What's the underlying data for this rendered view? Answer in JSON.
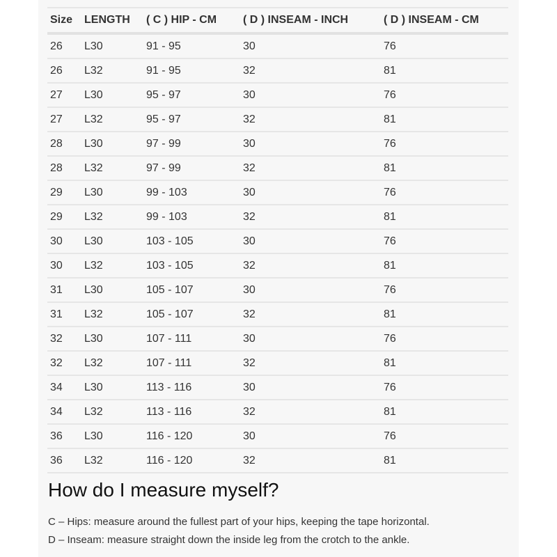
{
  "table": {
    "headers": [
      "Size",
      "LENGTH",
      "( C ) HIP - CM",
      "( D ) INSEAM - INCH",
      "( D ) INSEAM - CM"
    ],
    "rows": [
      [
        "26",
        "L30",
        "91 - 95",
        "30",
        "76"
      ],
      [
        "26",
        "L32",
        "91 - 95",
        "32",
        "81"
      ],
      [
        "27",
        "L30",
        "95 - 97",
        "30",
        "76"
      ],
      [
        "27",
        "L32",
        "95 - 97",
        "32",
        "81"
      ],
      [
        "28",
        "L30",
        "97 - 99",
        "30",
        "76"
      ],
      [
        "28",
        "L32",
        "97 - 99",
        "32",
        "81"
      ],
      [
        "29",
        "L30",
        "99 - 103",
        "30",
        "76"
      ],
      [
        "29",
        "L32",
        "99 - 103",
        "32",
        "81"
      ],
      [
        "30",
        "L30",
        "103 - 105",
        "30",
        "76"
      ],
      [
        "30",
        "L32",
        "103 - 105",
        "32",
        "81"
      ],
      [
        "31",
        "L30",
        "105 - 107",
        "30",
        "76"
      ],
      [
        "31",
        "L32",
        "105 - 107",
        "32",
        "81"
      ],
      [
        "32",
        "L30",
        "107 - 111",
        "30",
        "76"
      ],
      [
        "32",
        "L32",
        "107 - 111",
        "32",
        "81"
      ],
      [
        "34",
        "L30",
        "113 - 116",
        "30",
        "76"
      ],
      [
        "34",
        "L32",
        "113 - 116",
        "32",
        "81"
      ],
      [
        "36",
        "L30",
        "116 - 120",
        "30",
        "76"
      ],
      [
        "36",
        "L32",
        "116 - 120",
        "32",
        "81"
      ]
    ]
  },
  "guide": {
    "title": "How do I measure myself?",
    "hips": "C – Hips: measure around the fullest part of your hips, keeping the tape horizontal.",
    "inseam": "D – Inseam: measure straight down the inside leg from the crotch to the ankle."
  }
}
